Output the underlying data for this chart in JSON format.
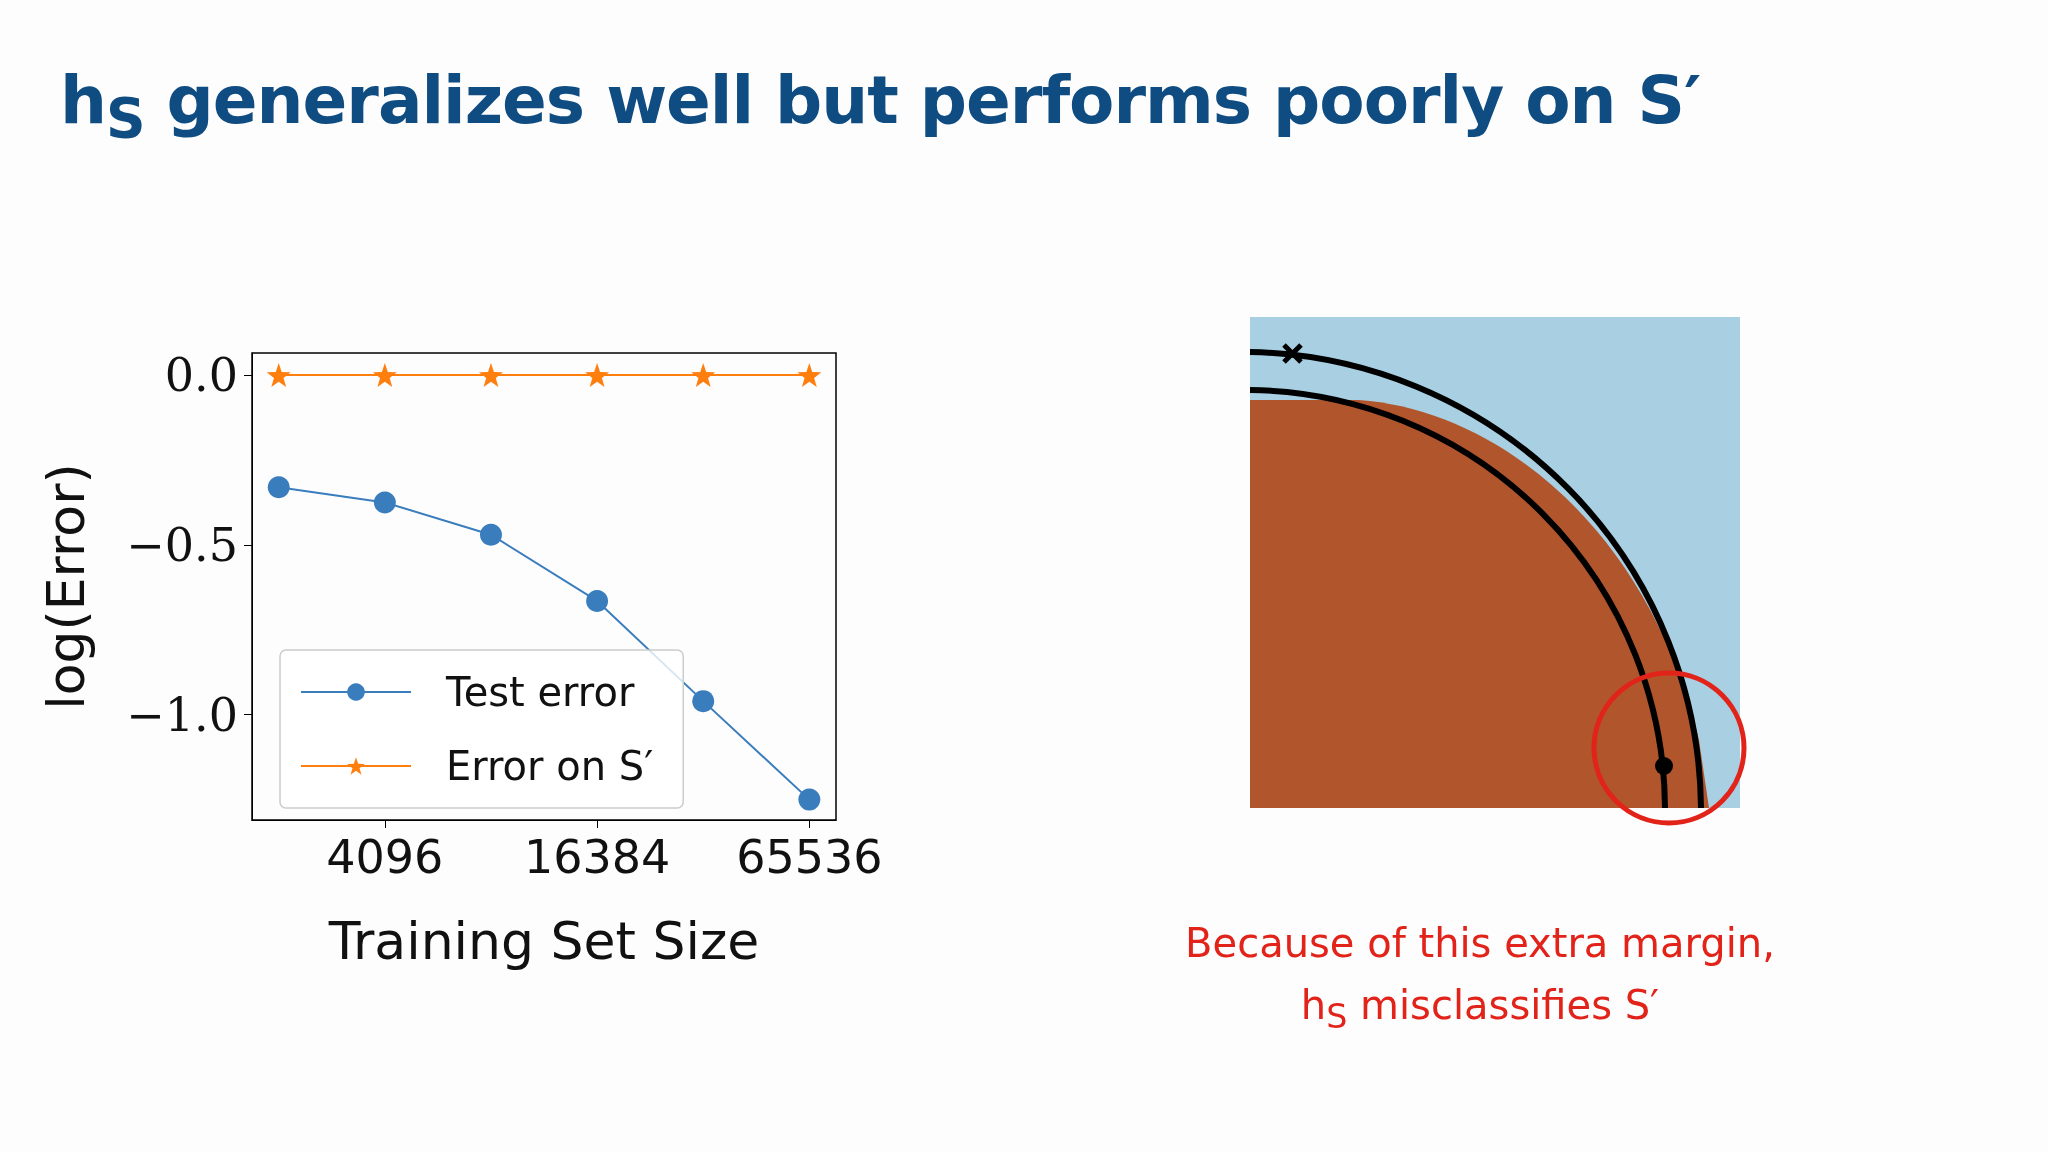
{
  "chart_data": {
    "type": "line",
    "title": "h$_{S}$ generalizes well but performs poorly on S′",
    "xlabel": "Training Set Size",
    "ylabel": "log(Error)",
    "x": [
      2048,
      4096,
      8192,
      16384,
      32768,
      65536
    ],
    "series": [
      {
        "name": "Test error",
        "color": "#3a7dbd",
        "marker": "circle",
        "values": [
          -0.33,
          -0.375,
          -0.47,
          -0.665,
          -0.96,
          -1.25
        ]
      },
      {
        "name": "Error on S′",
        "color": "#ff7f0e",
        "marker": "star",
        "values": [
          0,
          0,
          0,
          0,
          0,
          0
        ]
      }
    ],
    "log": "x",
    "xlim": [
      1720,
      78000
    ],
    "xticks": [
      4096,
      16384,
      65536
    ],
    "ylim": [
      -1.31,
      0.065
    ],
    "yticks": [
      {
        "value": 0,
        "label": "0.0"
      },
      {
        "value": -0.5,
        "label": "−0.5"
      },
      {
        "value": -1,
        "label": "−1.0"
      }
    ],
    "grid": false,
    "legend": "bottom left",
    "line_style": "solid",
    "annotations": [
      "Because of this extra margin,",
      "h$_{S}$ misclassifies S′"
    ]
  }
}
